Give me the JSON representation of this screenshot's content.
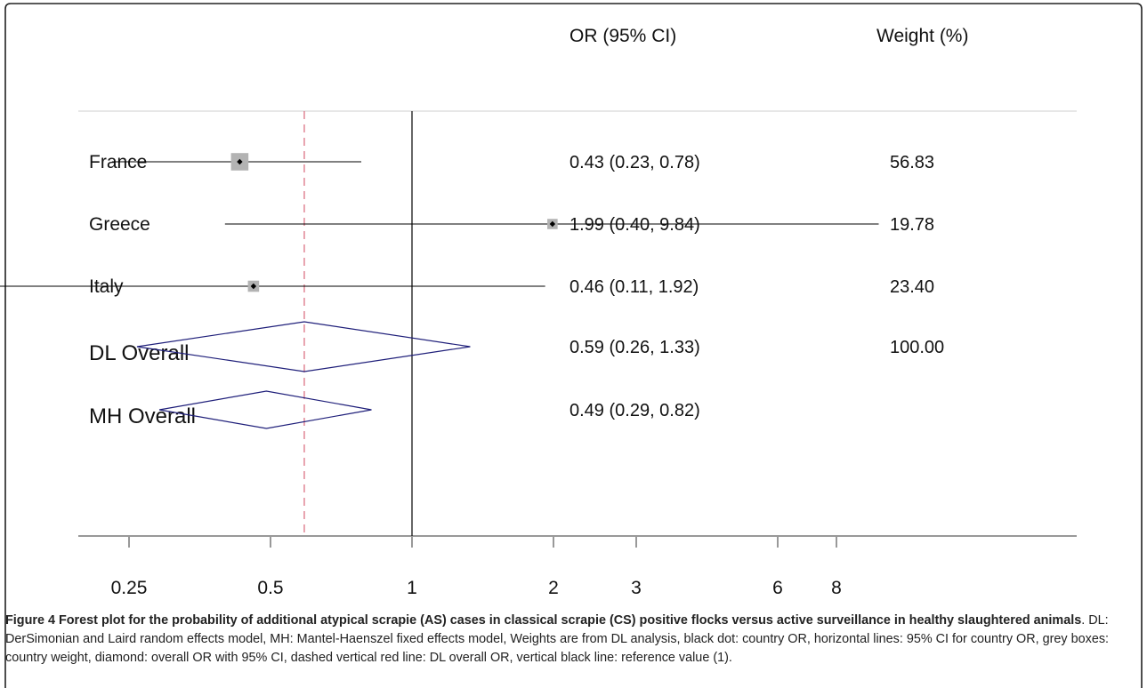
{
  "chart_data": {
    "type": "forest",
    "header": {
      "estimate_col": "OR (95% CI)",
      "weight_col": "Weight (%)"
    },
    "xscale": "log",
    "xlim": [
      0.2,
      16
    ],
    "ticks": [
      0.25,
      0.5,
      1,
      2,
      3,
      6,
      8
    ],
    "tick_labels": [
      "0.25",
      "0.5",
      "1",
      "2",
      "3",
      "6",
      "8"
    ],
    "reference_value": 1,
    "dl_overall_or": 0.59,
    "studies": [
      {
        "label": "France",
        "or": 0.43,
        "lo": 0.23,
        "hi": 0.78,
        "ci_text": "0.43 (0.23, 0.78)",
        "weight": 56.83,
        "weight_text": "56.83"
      },
      {
        "label": "Greece",
        "or": 1.99,
        "lo": 0.4,
        "hi": 9.84,
        "ci_text": "1.99 (0.40, 9.84)",
        "weight": 19.78,
        "weight_text": "19.78"
      },
      {
        "label": "Italy",
        "or": 0.46,
        "lo": 0.11,
        "hi": 1.92,
        "ci_text": "0.46 (0.11, 1.92)",
        "weight": 23.4,
        "weight_text": "23.40"
      }
    ],
    "overall": [
      {
        "label": "DL Overall",
        "or": 0.59,
        "lo": 0.26,
        "hi": 1.33,
        "ci_text": "0.59 (0.26, 1.33)",
        "weight_text": "100.00"
      },
      {
        "label": "MH Overall",
        "or": 0.49,
        "lo": 0.29,
        "hi": 0.82,
        "ci_text": "0.49 (0.29, 0.82)",
        "weight_text": ""
      }
    ],
    "colors": {
      "box": "#b3b3b3",
      "dot": "#000000",
      "diamond": "#1f1f7a",
      "dl_line": "#d9677a",
      "ref_line": "#000000"
    }
  },
  "caption": {
    "lead": "Figure 4 Forest plot for the probability of additional atypical scrapie (AS) cases in classical scrapie (CS) positive flocks versus active surveillance in healthy slaughtered animals",
    "body": ". DL: DerSimonian and Laird random effects model, MH: Mantel-Haenszel fixed effects model, Weights are from DL analysis, black dot: country OR, horizontal lines: 95% CI for country OR, grey boxes: country weight, diamond: overall OR with 95% CI, dashed vertical red line: DL overall OR, vertical black line: reference value (1)."
  }
}
